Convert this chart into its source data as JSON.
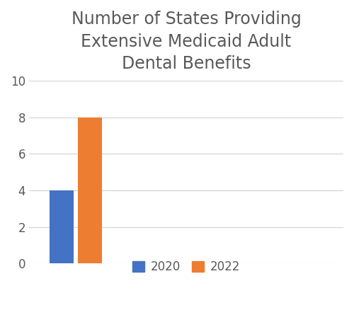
{
  "title": "Number of States Providing\nExtensive Medicaid Adult\nDental Benefits",
  "categories": [
    "2020",
    "2022"
  ],
  "values": [
    4,
    8
  ],
  "bar_colors": [
    "#4472c4",
    "#ed7d31"
  ],
  "ylim": [
    0,
    10
  ],
  "yticks": [
    0,
    2,
    4,
    6,
    8,
    10
  ],
  "bar_width": 0.12,
  "title_fontsize": 17,
  "tick_fontsize": 12,
  "legend_fontsize": 12,
  "background_color": "#ffffff",
  "text_color": "#595959",
  "grid_color": "#d3d3d3"
}
